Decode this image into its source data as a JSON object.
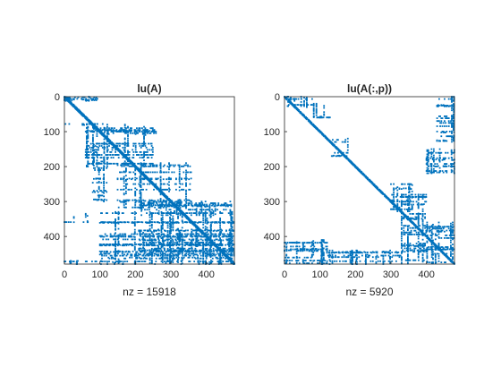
{
  "chart_data": [
    {
      "type": "spy",
      "title": "lu(A)",
      "xlabel": "nz = 15918",
      "xlim": [
        0,
        479
      ],
      "ylim": [
        0,
        479
      ],
      "y_reversed": true,
      "xticks": [
        0,
        100,
        200,
        300,
        400
      ],
      "yticks": [
        0,
        100,
        200,
        300,
        400
      ],
      "marker_color": "#0072BD",
      "pattern": {
        "diagonal": {
          "from": 0,
          "to": 479,
          "width": 6
        },
        "blocks": [
          {
            "rows": [
              0,
              14
            ],
            "cols": [
              0,
              95
            ]
          },
          {
            "rows": [
              75,
              82
            ],
            "cols": [
              0,
              110
            ]
          },
          {
            "rows": [
              80,
              200
            ],
            "cols": [
              60,
              250
            ]
          },
          {
            "rows": [
              95,
              110
            ],
            "cols": [
              120,
              260
            ]
          },
          {
            "rows": [
              180,
              300
            ],
            "cols": [
              80,
              120
            ]
          },
          {
            "rows": [
              190,
              320
            ],
            "cols": [
              150,
              360
            ]
          },
          {
            "rows": [
              300,
              340
            ],
            "cols": [
              215,
              470
            ]
          },
          {
            "rows": [
              335,
              360
            ],
            "cols": [
              0,
              70
            ]
          },
          {
            "rows": [
              330,
              479
            ],
            "cols": [
              100,
              479
            ]
          },
          {
            "rows": [
              380,
              440
            ],
            "cols": [
              210,
              479
            ]
          },
          {
            "rows": [
              470,
              479
            ],
            "cols": [
              0,
              479
            ]
          }
        ]
      }
    },
    {
      "type": "spy",
      "title": "lu(A(:,p))",
      "xlabel": "nz = 5920",
      "xlim": [
        0,
        479
      ],
      "ylim": [
        0,
        479
      ],
      "y_reversed": true,
      "xticks": [
        0,
        100,
        200,
        300,
        400
      ],
      "yticks": [
        0,
        100,
        200,
        300,
        400
      ],
      "marker_color": "#0072BD",
      "pattern": {
        "diagonal": {
          "from": 0,
          "to": 479,
          "width": 4
        },
        "blocks": [
          {
            "rows": [
              0,
              30
            ],
            "cols": [
              0,
              80
            ]
          },
          {
            "rows": [
              20,
              60
            ],
            "cols": [
              80,
              130
            ]
          },
          {
            "rows": [
              120,
              170
            ],
            "cols": [
              130,
              180
            ]
          },
          {
            "rows": [
              0,
              130
            ],
            "cols": [
              430,
              479
            ]
          },
          {
            "rows": [
              150,
              220
            ],
            "cols": [
              400,
              479
            ]
          },
          {
            "rows": [
              250,
              330
            ],
            "cols": [
              300,
              360
            ]
          },
          {
            "rows": [
              280,
              479
            ],
            "cols": [
              330,
              400
            ]
          },
          {
            "rows": [
              360,
              479
            ],
            "cols": [
              400,
              479
            ]
          },
          {
            "rows": [
              410,
              479
            ],
            "cols": [
              0,
              120
            ]
          },
          {
            "rows": [
              440,
              479
            ],
            "cols": [
              120,
              330
            ]
          }
        ]
      }
    }
  ]
}
